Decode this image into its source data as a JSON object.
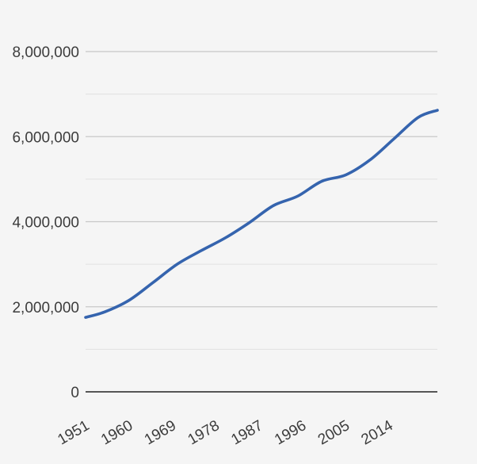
{
  "chart_data": {
    "type": "line",
    "title": "",
    "xlabel": "",
    "ylabel": "",
    "x": [
      1951,
      1955,
      1960,
      1965,
      1970,
      1975,
      1980,
      1985,
      1990,
      1995,
      2000,
      2005,
      2010,
      2015,
      2020,
      2024
    ],
    "series": [
      {
        "color": "#3564ae",
        "values": [
          1750000,
          1880000,
          2150000,
          2570000,
          3000000,
          3320000,
          3620000,
          3980000,
          4380000,
          4600000,
          4950000,
          5100000,
          5450000,
          5950000,
          6450000,
          6620000
        ]
      }
    ],
    "x_ticks": [
      "1951",
      "1960",
      "1969",
      "1978",
      "1987",
      "1996",
      "2005",
      "2014"
    ],
    "y_ticks": [
      "0",
      "2,000,000",
      "4,000,000",
      "6,000,000",
      "8,000,000"
    ],
    "ylim": [
      0,
      8000000
    ],
    "xlim": [
      1951,
      2024
    ],
    "grid": true
  }
}
